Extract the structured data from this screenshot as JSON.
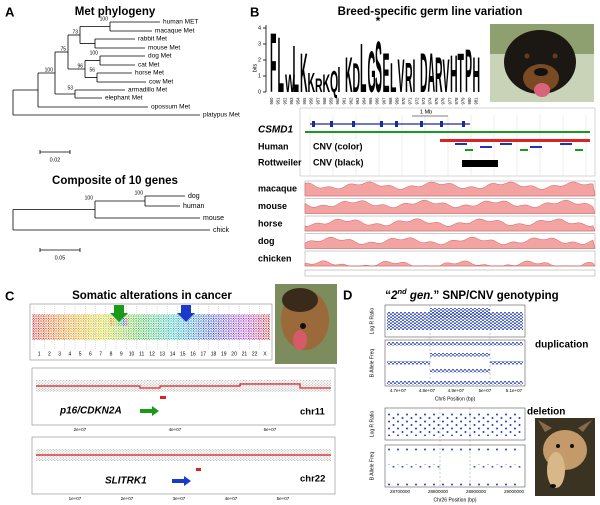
{
  "panel_a": {
    "label": "A",
    "title": "Met phylogeny",
    "leaves": [
      "human MET",
      "macaque Met",
      "rabbit Met",
      "mouse Met",
      "dog Met",
      "cat Met",
      "horse Met",
      "cow Met",
      "armadillo Met",
      "elephant Met",
      "opossum Met",
      "platypus Met"
    ],
    "bootstrap": [
      100,
      73,
      75,
      100,
      100,
      96,
      56,
      53
    ],
    "scale": "0.02",
    "subtitle": "Composite of 10 genes",
    "composite_leaves": [
      "dog",
      "human",
      "mouse",
      "chick"
    ],
    "composite_bootstrap": [
      100,
      100
    ],
    "composite_scale": "0.05"
  },
  "panel_b": {
    "label": "B",
    "title": "Breed-specific germ line variation",
    "logo_ylabel": "bits",
    "logo_yticks": [
      0,
      1,
      2,
      3,
      4
    ],
    "logo_letters": [
      "F",
      "L",
      "W",
      "L",
      "K",
      "K",
      "R",
      "K",
      "Q",
      "I",
      "K",
      "D",
      "L",
      "G",
      "S",
      "E",
      "L",
      "V",
      "R",
      "I",
      "D",
      "A",
      "R",
      "V",
      "H",
      "T",
      "P",
      "H"
    ],
    "logo_star": "*",
    "logo_positions": [
      950,
      951,
      952,
      953,
      954,
      955,
      956,
      957,
      958,
      959,
      960,
      961,
      962,
      963,
      964,
      965,
      966,
      967,
      968,
      969,
      970,
      971,
      972,
      973,
      974,
      975,
      976,
      977,
      978,
      979,
      980,
      981
    ],
    "browser_scale": "1 Mb",
    "gene": "CSMD1",
    "tracks_left": [
      "Human",
      "Rottweiler"
    ],
    "tracks_right": [
      "CNV (color)",
      "CNV (black)"
    ],
    "conservation": [
      "macaque",
      "mouse",
      "horse",
      "dog",
      "chicken"
    ]
  },
  "panel_c": {
    "label": "C",
    "title": "Somatic alterations in cancer",
    "chromosomes": [
      "1",
      "2",
      "3",
      "4",
      "5",
      "6",
      "7",
      "8",
      "9",
      "10",
      "11",
      "12",
      "13",
      "14",
      "15",
      "16",
      "17",
      "18",
      "19",
      "20",
      "21",
      "22",
      "X"
    ],
    "chr11_gene": "p16/CDKN2A",
    "chr11_label": "chr11",
    "chr11_xticks": [
      "2e+07",
      "4e+07",
      "6e+07"
    ],
    "chr22_gene": "SLITRK1",
    "chr22_label": "chr22",
    "chr22_xticks": [
      "1e+07",
      "2e+07",
      "3e+07",
      "4e+07",
      "5e+07"
    ]
  },
  "panel_d": {
    "label": "D",
    "title_parts": [
      "“",
      "2",
      "nd",
      " gen.",
      "” SNP/CNV genotyping"
    ],
    "lrr_title": "Log R Ratio",
    "baf_title": "B Allele Freq",
    "dup_xticks": [
      "4.7e+07",
      "4.8e+07",
      "4.9e+07",
      "5e+07",
      "5.1e+07"
    ],
    "dup_xtitle": "Chr6 Position (bp)",
    "dup_label": "duplication",
    "del_xticks": [
      "28700000",
      "28800000",
      "28900000",
      "29000000"
    ],
    "del_xtitle": "Chr26 Position (bp)",
    "del_label": "deletion"
  }
}
